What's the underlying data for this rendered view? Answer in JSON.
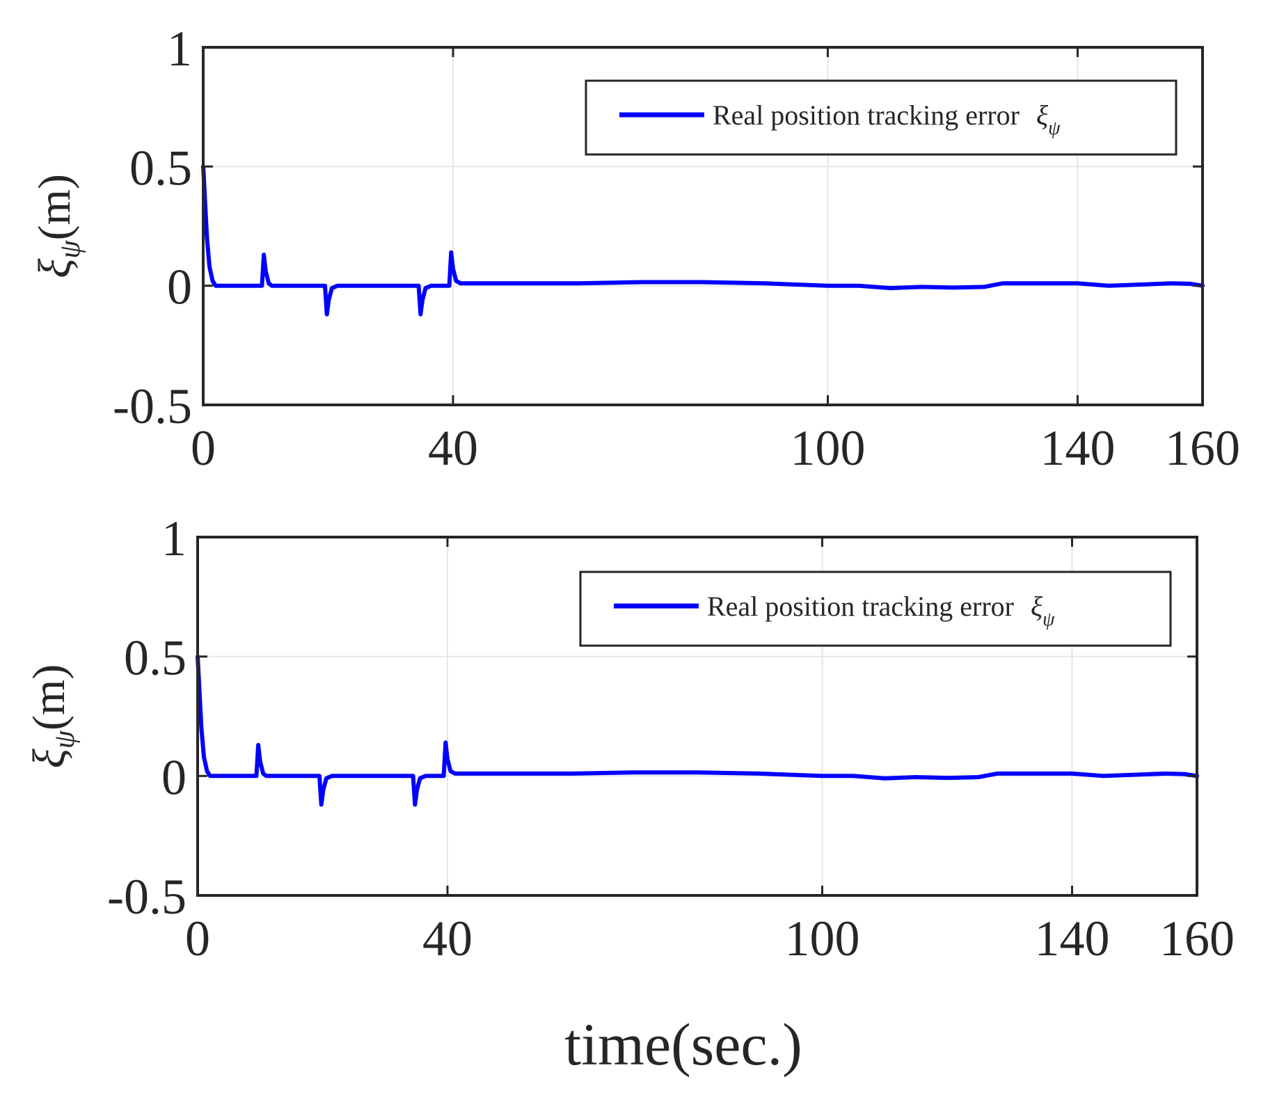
{
  "chart_data": [
    {
      "type": "line",
      "title": "",
      "ylabel": {
        "base": "ξ",
        "sub": "ψ",
        "unit": "(m)"
      },
      "xlabel": "",
      "xlim": [
        0,
        160
      ],
      "ylim": [
        -0.5,
        1
      ],
      "xticks": [
        0,
        40,
        100,
        140,
        160
      ],
      "xtick_labels": [
        "0",
        "40",
        "100",
        "140",
        "160"
      ],
      "yticks": [
        -0.5,
        0,
        0.5,
        1
      ],
      "ytick_labels": [
        "-0.5",
        "0",
        "0.5",
        "1"
      ],
      "grid": true,
      "legend_position": "top-right",
      "series": [
        {
          "name": "Real position tracking error",
          "legend_symbol": {
            "base": "ξ",
            "sub": "ψ"
          },
          "color": "#0000ff",
          "x": [
            0,
            0.3,
            0.6,
            1.0,
            1.5,
            2.0,
            3.0,
            5,
            9.4,
            9.7,
            10.0,
            10.5,
            11.0,
            12,
            15,
            19.5,
            19.8,
            20.1,
            20.6,
            21.5,
            25,
            30,
            34.5,
            34.8,
            35.1,
            35.6,
            36.5,
            39.4,
            39.7,
            40.0,
            40.5,
            41.2,
            45,
            50,
            60,
            70,
            80,
            90,
            95,
            100,
            105,
            110,
            115,
            120,
            125,
            128,
            130,
            135,
            140,
            145,
            150,
            155,
            158,
            160
          ],
          "y": [
            0.5,
            0.35,
            0.2,
            0.08,
            0.02,
            0.0,
            0.0,
            0.0,
            0.0,
            0.13,
            0.06,
            0.01,
            0.0,
            0.0,
            0.0,
            0.0,
            -0.12,
            -0.06,
            -0.01,
            0.0,
            0.0,
            0.0,
            0.0,
            -0.12,
            -0.06,
            -0.01,
            0.0,
            0.0,
            0.14,
            0.07,
            0.02,
            0.01,
            0.01,
            0.01,
            0.01,
            0.015,
            0.015,
            0.01,
            0.005,
            0.0,
            0.0,
            -0.01,
            -0.005,
            -0.008,
            -0.005,
            0.01,
            0.01,
            0.01,
            0.01,
            0.0,
            0.005,
            0.01,
            0.008,
            0.0
          ]
        }
      ]
    },
    {
      "type": "line",
      "title": "",
      "ylabel": {
        "base": "ξ",
        "sub": "ψ",
        "unit": "(m)"
      },
      "xlabel": "time(sec.)",
      "xlim": [
        0,
        160
      ],
      "ylim": [
        -0.5,
        1
      ],
      "xticks": [
        0,
        40,
        100,
        140,
        160
      ],
      "xtick_labels": [
        "0",
        "40",
        "100",
        "140",
        "160"
      ],
      "yticks": [
        -0.5,
        0,
        0.5,
        1
      ],
      "ytick_labels": [
        "-0.5",
        "0",
        "0.5",
        "1"
      ],
      "grid": true,
      "legend_position": "top-right",
      "series": [
        {
          "name": "Real position tracking error",
          "legend_symbol": {
            "base": "ξ",
            "sub": "ψ"
          },
          "color": "#0000ff",
          "x": [
            0,
            0.3,
            0.6,
            1.0,
            1.5,
            2.0,
            3.0,
            5,
            9.4,
            9.7,
            10.0,
            10.5,
            11.0,
            12,
            15,
            19.5,
            19.8,
            20.1,
            20.6,
            21.5,
            25,
            30,
            34.5,
            34.8,
            35.1,
            35.6,
            36.5,
            39.4,
            39.7,
            40.0,
            40.5,
            41.2,
            45,
            50,
            60,
            70,
            80,
            90,
            95,
            100,
            105,
            110,
            115,
            120,
            125,
            128,
            130,
            135,
            140,
            145,
            150,
            155,
            158,
            160
          ],
          "y": [
            0.5,
            0.35,
            0.2,
            0.08,
            0.02,
            0.0,
            0.0,
            0.0,
            0.0,
            0.13,
            0.06,
            0.01,
            0.0,
            0.0,
            0.0,
            0.0,
            -0.12,
            -0.06,
            -0.01,
            0.0,
            0.0,
            0.0,
            0.0,
            -0.12,
            -0.06,
            -0.01,
            0.0,
            0.0,
            0.14,
            0.07,
            0.02,
            0.01,
            0.01,
            0.01,
            0.01,
            0.015,
            0.015,
            0.01,
            0.005,
            0.0,
            0.0,
            -0.01,
            -0.005,
            -0.008,
            -0.005,
            0.01,
            0.01,
            0.01,
            0.01,
            0.0,
            0.005,
            0.01,
            0.008,
            0.0
          ]
        }
      ]
    }
  ]
}
